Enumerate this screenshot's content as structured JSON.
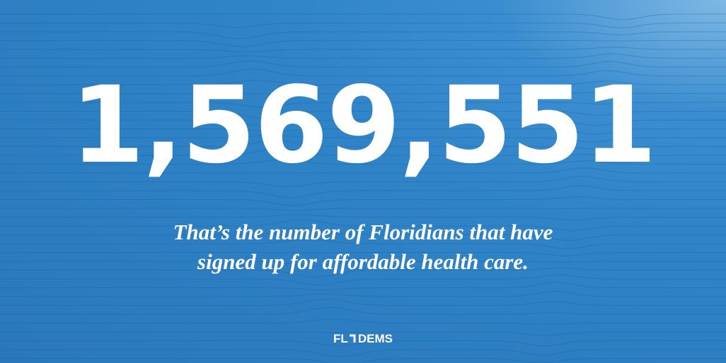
{
  "headline": "1,569,551",
  "subtitle": [
    "That’s the number of Floridians that have",
    "signed up for affordable health care."
  ],
  "logo": {
    "left": "FL",
    "right": "DEMS"
  }
}
